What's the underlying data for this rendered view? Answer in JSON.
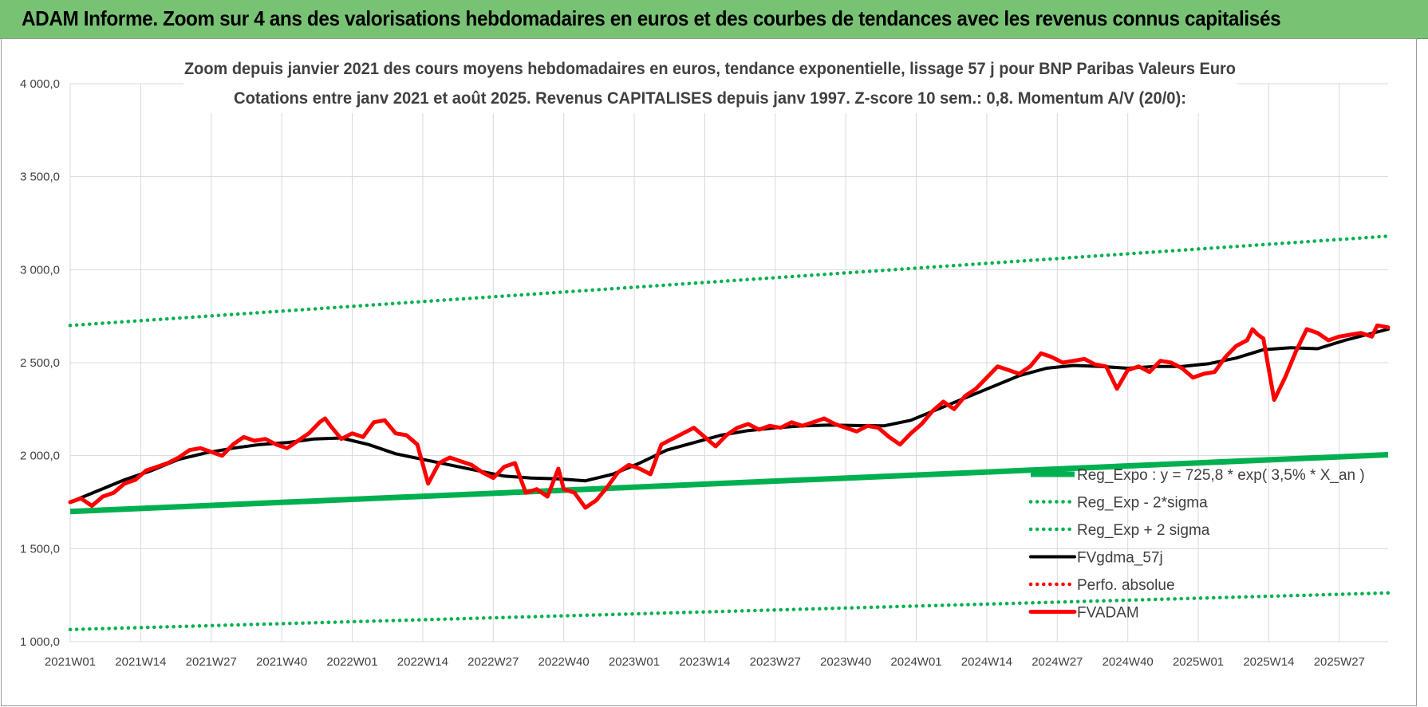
{
  "banner": {
    "title": "ADAM Informe. Zoom sur 4 ans des valorisations hebdomadaires en euros et des courbes de tendances avec les revenus connus capitalisés",
    "color": "#78c274"
  },
  "chart_data": {
    "type": "line",
    "title_line1": "Zoom depuis janvier 2021 des cours moyens hebdomadaires en euros, tendance exponentielle, lissage 57 j pour BNP Paribas Valeurs Euro",
    "title_line2": "Cotations entre janv 2021 et août 2025.  Revenus CAPITALISES depuis janv 1997. Z-score 10 sem.: 0,8. Momentum A/V (20/0):",
    "ylim": [
      1000,
      4000
    ],
    "y_ticks": [
      "1 000,0",
      "1 500,0",
      "2 000,0",
      "2 500,0",
      "3 000,0",
      "3 500,0",
      "4 000,0"
    ],
    "y_tick_values": [
      1000,
      1500,
      2000,
      2500,
      3000,
      3500,
      4000
    ],
    "x_ticks": [
      "2021W01",
      "2021W14",
      "2021W27",
      "2021W40",
      "2022W01",
      "2022W14",
      "2022W27",
      "2022W40",
      "2023W01",
      "2023W14",
      "2023W27",
      "2023W40",
      "2024W01",
      "2024W14",
      "2024W27",
      "2024W40",
      "2025W01",
      "2025W14",
      "2025W27"
    ],
    "x_tick_weeks": [
      0,
      13,
      26,
      39,
      52,
      65,
      78,
      91,
      104,
      117,
      130,
      143,
      156,
      169,
      182,
      195,
      208,
      221,
      234
    ],
    "x_range_weeks": [
      0,
      243
    ],
    "grid": true,
    "legend_position": "bottom-right",
    "series": [
      {
        "name": "Reg_Expo : y = 725,8 * exp( 3,5% *  X_an )",
        "color": "#00b050",
        "style": "solid-thick",
        "x": [
          0,
          243
        ],
        "y": [
          1700,
          2005
        ]
      },
      {
        "name": "Reg_Exp - 2*sigma",
        "color": "#00b050",
        "style": "dotted",
        "x": [
          0,
          243
        ],
        "y": [
          1065,
          1262
        ]
      },
      {
        "name": "Reg_Exp + 2 sigma",
        "color": "#00b050",
        "style": "dotted",
        "x": [
          0,
          243
        ],
        "y": [
          2700,
          3180
        ]
      },
      {
        "name": "FVgdma_57j",
        "color": "#000000",
        "style": "solid",
        "x": [
          0,
          5,
          10,
          15,
          20,
          25,
          30,
          35,
          40,
          45,
          50,
          55,
          60,
          65,
          70,
          75,
          80,
          85,
          90,
          95,
          100,
          105,
          110,
          115,
          120,
          125,
          130,
          135,
          140,
          145,
          150,
          155,
          160,
          165,
          170,
          175,
          180,
          185,
          190,
          195,
          200,
          205,
          210,
          215,
          220,
          225,
          230,
          235,
          243
        ],
        "y": [
          1750,
          1810,
          1870,
          1920,
          1980,
          2015,
          2040,
          2060,
          2070,
          2090,
          2095,
          2060,
          2010,
          1980,
          1950,
          1920,
          1890,
          1880,
          1875,
          1865,
          1900,
          1960,
          2030,
          2070,
          2110,
          2135,
          2150,
          2160,
          2165,
          2162,
          2160,
          2190,
          2250,
          2310,
          2370,
          2430,
          2470,
          2485,
          2480,
          2470,
          2480,
          2480,
          2495,
          2525,
          2570,
          2580,
          2575,
          2620,
          2680
        ]
      },
      {
        "name": "Perfo. absolue",
        "color": "#ff0000",
        "style": "dotted",
        "x": [],
        "y": []
      },
      {
        "name": "FVADAM",
        "color": "#ff0000",
        "style": "solid-thick",
        "x": [
          0,
          2,
          4,
          6,
          8,
          10,
          12,
          14,
          16,
          18,
          20,
          22,
          24,
          26,
          28,
          30,
          32,
          34,
          36,
          38,
          40,
          42,
          44,
          46,
          47,
          48,
          50,
          52,
          54,
          56,
          58,
          60,
          62,
          64,
          66,
          68,
          70,
          72,
          74,
          76,
          78,
          80,
          82,
          84,
          86,
          88,
          90,
          91,
          93,
          95,
          97,
          99,
          101,
          103,
          105,
          107,
          109,
          111,
          113,
          115,
          117,
          119,
          121,
          123,
          125,
          127,
          129,
          131,
          133,
          135,
          137,
          139,
          141,
          143,
          145,
          147,
          149,
          151,
          153,
          155,
          157,
          159,
          161,
          163,
          165,
          167,
          169,
          171,
          173,
          175,
          177,
          179,
          181,
          183,
          185,
          187,
          189,
          191,
          193,
          195,
          197,
          199,
          201,
          203,
          205,
          207,
          209,
          211,
          213,
          215,
          217,
          218,
          219,
          220,
          222,
          224,
          226,
          228,
          230,
          232,
          234,
          236,
          238,
          240,
          241,
          243
        ],
        "y": [
          1750,
          1770,
          1730,
          1780,
          1800,
          1850,
          1870,
          1920,
          1940,
          1960,
          1990,
          2030,
          2040,
          2020,
          2000,
          2060,
          2100,
          2080,
          2090,
          2060,
          2040,
          2080,
          2120,
          2180,
          2200,
          2160,
          2090,
          2120,
          2100,
          2180,
          2190,
          2120,
          2110,
          2060,
          1850,
          1960,
          1990,
          1970,
          1950,
          1910,
          1880,
          1940,
          1960,
          1800,
          1820,
          1780,
          1930,
          1820,
          1800,
          1720,
          1760,
          1830,
          1910,
          1950,
          1930,
          1900,
          2060,
          2090,
          2120,
          2150,
          2100,
          2050,
          2110,
          2150,
          2170,
          2140,
          2160,
          2150,
          2180,
          2160,
          2180,
          2200,
          2170,
          2150,
          2130,
          2160,
          2150,
          2100,
          2060,
          2120,
          2170,
          2240,
          2290,
          2250,
          2320,
          2360,
          2420,
          2480,
          2460,
          2440,
          2480,
          2550,
          2530,
          2500,
          2510,
          2520,
          2490,
          2480,
          2360,
          2460,
          2480,
          2450,
          2510,
          2500,
          2470,
          2420,
          2440,
          2450,
          2530,
          2590,
          2620,
          2680,
          2650,
          2630,
          2300,
          2420,
          2560,
          2680,
          2660,
          2620,
          2640,
          2650,
          2660,
          2640,
          2700,
          2690
        ]
      }
    ]
  }
}
